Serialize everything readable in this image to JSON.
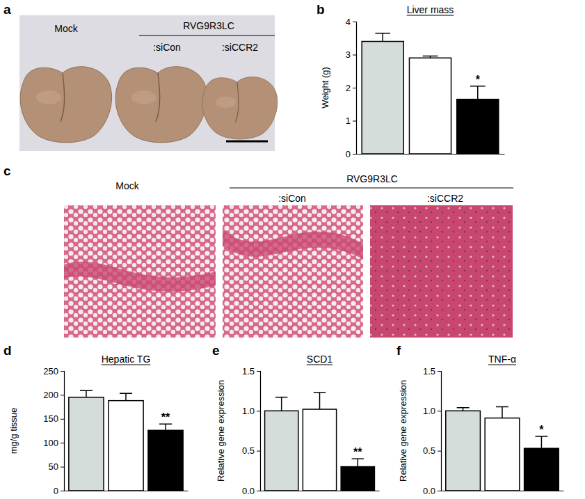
{
  "chart_data": [
    {
      "type": "bar",
      "title": "Liver mass",
      "annotations": [
        "b"
      ],
      "y_label": "Weight (g)",
      "categories": [
        null,
        null,
        null
      ],
      "values": [
        3.4,
        2.9,
        1.65
      ],
      "errors": [
        0.25,
        0.06,
        0.4
      ],
      "significance": [
        null,
        null,
        "*"
      ],
      "colors": [
        "#d4ddda",
        "#ffffff",
        "#000000"
      ],
      "ylim": [
        0,
        4
      ],
      "yticks": [
        0,
        1,
        2,
        3,
        4
      ]
    },
    {
      "type": "bar",
      "title": "Hepatic TG",
      "annotations": [
        "d"
      ],
      "y_label": "mg/g tissue",
      "categories": [
        null,
        null,
        null
      ],
      "values": [
        195,
        188,
        126
      ],
      "errors": [
        14,
        15,
        13
      ],
      "significance": [
        null,
        null,
        "**"
      ],
      "colors": [
        "#d4ddda",
        "#ffffff",
        "#000000"
      ],
      "ylim": [
        0,
        250
      ],
      "yticks": [
        0,
        50,
        100,
        150,
        200,
        250
      ]
    },
    {
      "type": "bar",
      "title": "SCD1",
      "annotations": [
        "e"
      ],
      "y_label": "Relative gene expression",
      "categories": [
        null,
        null,
        null
      ],
      "values": [
        1.0,
        1.02,
        0.3
      ],
      "errors": [
        0.17,
        0.21,
        0.1
      ],
      "significance": [
        null,
        null,
        "**"
      ],
      "colors": [
        "#d4ddda",
        "#ffffff",
        "#000000"
      ],
      "ylim": [
        0,
        1.5
      ],
      "yticks": [
        {
          "value": 0,
          "label": "0.0"
        },
        0.5,
        {
          "value": 1,
          "label": "1.0"
        },
        1.5
      ]
    },
    {
      "type": "bar",
      "title": "TNF-α",
      "annotations": [
        "f"
      ],
      "y_label": "Relative gene expression",
      "categories": [
        null,
        null,
        null
      ],
      "values": [
        1.0,
        0.91,
        0.53
      ],
      "errors": [
        0.04,
        0.14,
        0.15
      ],
      "significance": [
        null,
        null,
        "*"
      ],
      "colors": [
        "#d4ddda",
        "#ffffff",
        "#000000"
      ],
      "ylim": [
        0,
        1.5
      ],
      "yticks": [
        {
          "value": 0,
          "label": "0.0"
        },
        0.5,
        {
          "value": 1,
          "label": "1.0"
        },
        1.5
      ]
    }
  ],
  "image_panels": [
    {
      "label": "a",
      "group_label": "RVG9R3LC",
      "items": [
        "Mock",
        ":siCon",
        ":siCCR2"
      ]
    },
    {
      "label": "c",
      "group_label": "RVG9R3LC",
      "items": [
        "Mock",
        ":siCon",
        ":siCCR2"
      ]
    }
  ]
}
